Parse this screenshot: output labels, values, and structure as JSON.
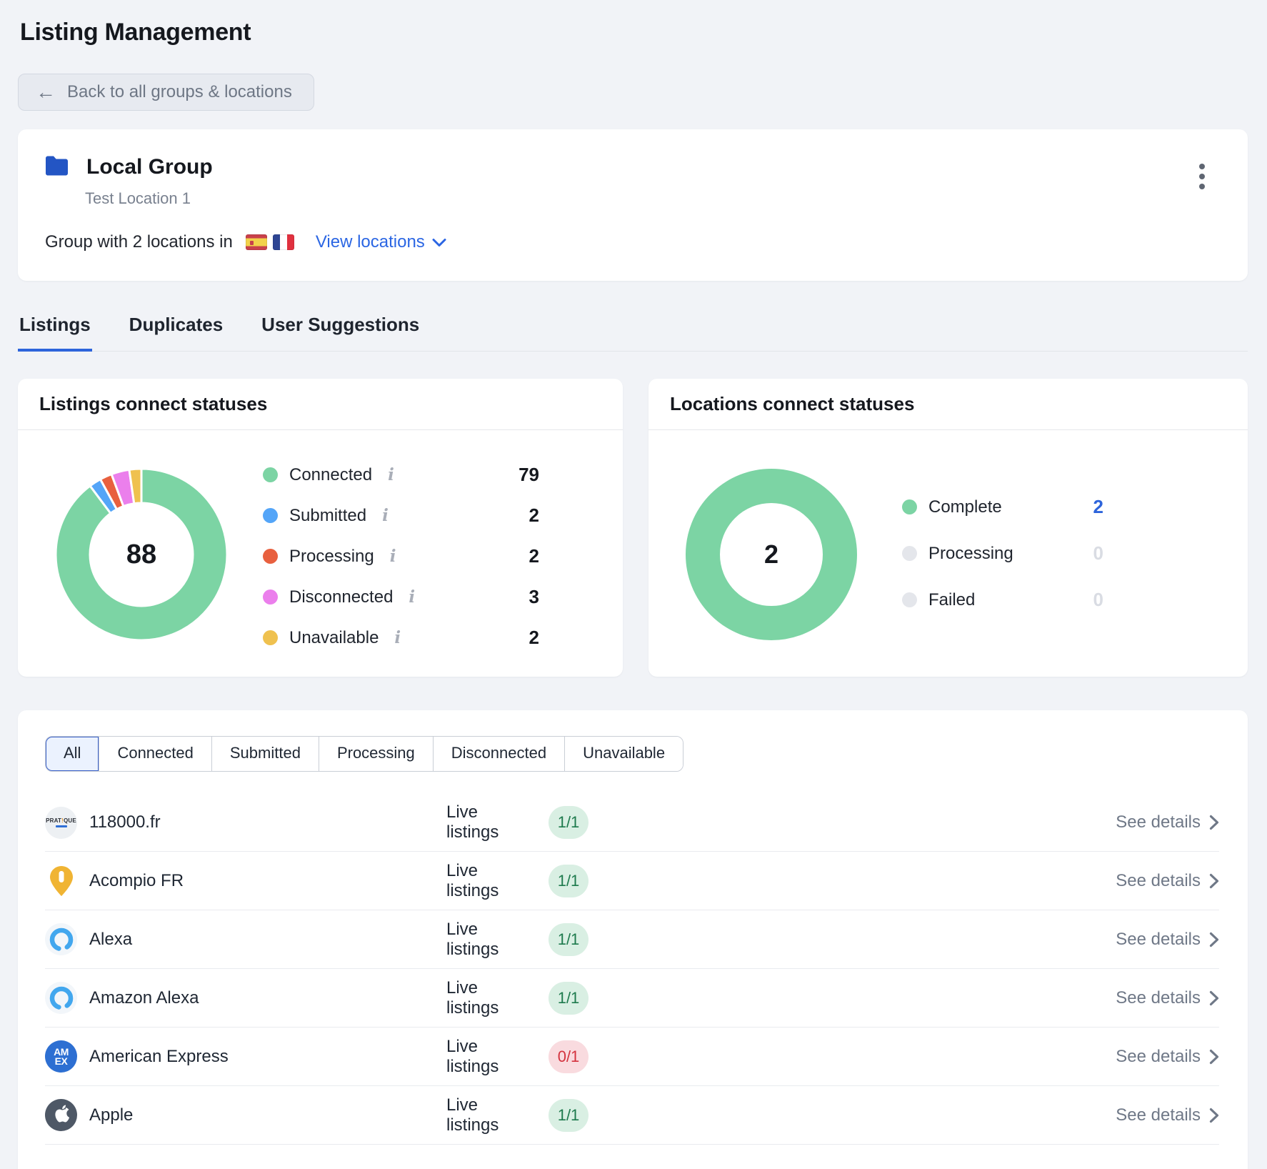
{
  "page": {
    "title": "Listing Management"
  },
  "back_button": {
    "label": "Back to all groups & locations"
  },
  "group_card": {
    "name": "Local Group",
    "subtitle": "Test Location 1",
    "locations_text": "Group with 2 locations in",
    "flags": [
      "spain",
      "france"
    ],
    "view_locations_label": "View locations"
  },
  "tabs": [
    {
      "label": "Listings",
      "active": true
    },
    {
      "label": "Duplicates",
      "active": false
    },
    {
      "label": "User Suggestions",
      "active": false
    }
  ],
  "chart_data": [
    {
      "type": "donut",
      "title": "Listings connect statuses",
      "total": 88,
      "center_label": "88",
      "legend_position": "right",
      "legend": [
        {
          "label": "Connected",
          "value": 79,
          "color": "#7CD4A4",
          "info_icon": true
        },
        {
          "label": "Submitted",
          "value": 2,
          "color": "#54A5F8",
          "info_icon": true
        },
        {
          "label": "Processing",
          "value": 2,
          "color": "#E8603F",
          "info_icon": true
        },
        {
          "label": "Disconnected",
          "value": 3,
          "color": "#EB7FEC",
          "info_icon": true
        },
        {
          "label": "Unavailable",
          "value": 2,
          "color": "#EFC14F",
          "info_icon": true
        }
      ]
    },
    {
      "type": "donut",
      "title": "Locations connect statuses",
      "total": 2,
      "center_label": "2",
      "legend_position": "right",
      "legend": [
        {
          "label": "Complete",
          "value": 2,
          "color": "#7CD4A4",
          "value_color": "#2D64DB"
        },
        {
          "label": "Processing",
          "value": 0,
          "color": "#E4E6EB",
          "value_color": "#D9DCE3"
        },
        {
          "label": "Failed",
          "value": 0,
          "color": "#E4E6EB",
          "value_color": "#D9DCE3"
        }
      ]
    }
  ],
  "filters": {
    "active": "All",
    "options": [
      "All",
      "Connected",
      "Submitted",
      "Processing",
      "Disconnected",
      "Unavailable"
    ]
  },
  "listings": {
    "live_listings_label": "Live listings",
    "see_details_label": "See details",
    "rows": [
      {
        "name": "118000.fr",
        "logo": "pratique-logo",
        "live": "1/1",
        "status": "ok"
      },
      {
        "name": "Acompio FR",
        "logo": "acompio-pin",
        "live": "1/1",
        "status": "ok"
      },
      {
        "name": "Alexa",
        "logo": "alexa-ring",
        "live": "1/1",
        "status": "ok"
      },
      {
        "name": "Amazon Alexa",
        "logo": "alexa-ring",
        "live": "1/1",
        "status": "ok"
      },
      {
        "name": "American Express",
        "logo": "amex-logo",
        "live": "0/1",
        "status": "fail"
      },
      {
        "name": "Apple",
        "logo": "apple-logo",
        "live": "1/1",
        "status": "ok"
      }
    ]
  },
  "colors": {
    "accent_blue": "#2D64DB",
    "link_blue": "#2B66E3",
    "green": "#7CD4A4",
    "badge_ok_bg": "#D9EFE3",
    "badge_ok_text": "#1E7A4D",
    "badge_fail_bg": "#F9DBDF",
    "badge_fail_text": "#D4333F",
    "page_bg": "#F1F3F7"
  }
}
